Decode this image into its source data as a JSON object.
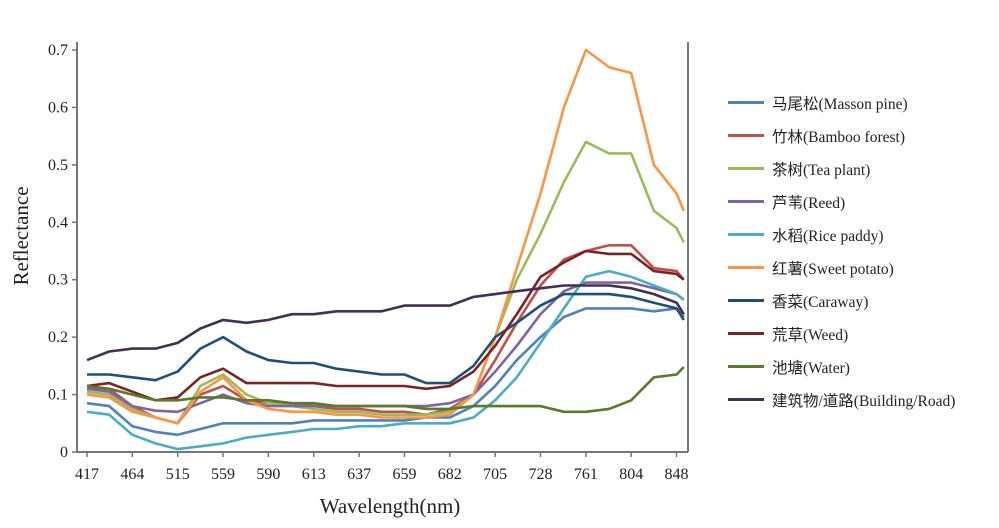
{
  "chart_data": {
    "type": "line",
    "xlabel": "Wavelength(nm)",
    "ylabel": "Reflectance",
    "ylim": [
      0,
      0.7
    ],
    "yticks": [
      "0",
      "0.1",
      "0.2",
      "0.3",
      "0.4",
      "0.5",
      "0.6",
      "0.7"
    ],
    "xtick_labels": [
      "417",
      "464",
      "515",
      "559",
      "590",
      "613",
      "637",
      "659",
      "682",
      "705",
      "728",
      "761",
      "804",
      "848"
    ],
    "grid": false,
    "legend_placement": "right",
    "x": [
      417,
      440,
      464,
      490,
      515,
      537,
      559,
      575,
      590,
      602,
      613,
      625,
      637,
      648,
      659,
      670,
      682,
      694,
      705,
      716,
      728,
      745,
      761,
      783,
      804,
      826,
      848,
      855
    ],
    "series": [
      {
        "name": "马尾松(Masson pine)",
        "color": "#4f81bd",
        "values": [
          0.085,
          0.08,
          0.045,
          0.035,
          0.03,
          0.04,
          0.05,
          0.05,
          0.05,
          0.05,
          0.055,
          0.055,
          0.055,
          0.055,
          0.055,
          0.06,
          0.06,
          0.08,
          0.115,
          0.16,
          0.2,
          0.235,
          0.25,
          0.25,
          0.25,
          0.245,
          0.25,
          0.235
        ]
      },
      {
        "name": "竹林(Bamboo forest)",
        "color": "#c0504d",
        "values": [
          0.11,
          0.11,
          0.08,
          0.06,
          0.05,
          0.1,
          0.115,
          0.09,
          0.085,
          0.085,
          0.08,
          0.075,
          0.075,
          0.07,
          0.07,
          0.065,
          0.075,
          0.1,
          0.16,
          0.225,
          0.29,
          0.335,
          0.35,
          0.36,
          0.36,
          0.32,
          0.315,
          0.3
        ]
      },
      {
        "name": "茶树(Tea plant)",
        "color": "#9bbb59",
        "values": [
          0.105,
          0.1,
          0.075,
          0.06,
          0.05,
          0.115,
          0.135,
          0.1,
          0.085,
          0.08,
          0.075,
          0.07,
          0.07,
          0.065,
          0.065,
          0.065,
          0.07,
          0.1,
          0.2,
          0.3,
          0.38,
          0.47,
          0.54,
          0.52,
          0.52,
          0.42,
          0.39,
          0.365
        ]
      },
      {
        "name": "芦苇(Reed)",
        "color": "#8064a2",
        "values": [
          0.11,
          0.105,
          0.08,
          0.072,
          0.07,
          0.085,
          0.1,
          0.085,
          0.08,
          0.08,
          0.08,
          0.08,
          0.08,
          0.08,
          0.08,
          0.08,
          0.085,
          0.1,
          0.14,
          0.185,
          0.24,
          0.28,
          0.295,
          0.295,
          0.295,
          0.285,
          0.275,
          0.265
        ]
      },
      {
        "name": "水稻(Rice paddy)",
        "color": "#4bacc6",
        "values": [
          0.07,
          0.065,
          0.03,
          0.015,
          0.005,
          0.01,
          0.015,
          0.025,
          0.03,
          0.035,
          0.04,
          0.04,
          0.045,
          0.045,
          0.05,
          0.05,
          0.05,
          0.06,
          0.09,
          0.13,
          0.19,
          0.25,
          0.305,
          0.315,
          0.305,
          0.29,
          0.275,
          0.265
        ]
      },
      {
        "name": "红薯(Sweet potato)",
        "color": "#f79646",
        "values": [
          0.1,
          0.095,
          0.07,
          0.06,
          0.05,
          0.105,
          0.13,
          0.09,
          0.075,
          0.07,
          0.07,
          0.065,
          0.065,
          0.06,
          0.06,
          0.06,
          0.065,
          0.1,
          0.2,
          0.32,
          0.45,
          0.6,
          0.7,
          0.67,
          0.66,
          0.5,
          0.45,
          0.42
        ]
      },
      {
        "name": "香菜(Caraway)",
        "color": "#1f4e79",
        "values": [
          0.135,
          0.135,
          0.13,
          0.125,
          0.14,
          0.18,
          0.2,
          0.175,
          0.16,
          0.155,
          0.155,
          0.145,
          0.14,
          0.135,
          0.135,
          0.12,
          0.12,
          0.15,
          0.2,
          0.225,
          0.255,
          0.275,
          0.275,
          0.275,
          0.27,
          0.26,
          0.25,
          0.23
        ]
      },
      {
        "name": "荒草(Weed)",
        "color": "#7b2323",
        "values": [
          0.115,
          0.12,
          0.105,
          0.09,
          0.095,
          0.13,
          0.145,
          0.12,
          0.12,
          0.12,
          0.12,
          0.115,
          0.115,
          0.115,
          0.115,
          0.11,
          0.115,
          0.14,
          0.185,
          0.24,
          0.305,
          0.33,
          0.35,
          0.345,
          0.345,
          0.315,
          0.31,
          0.3
        ]
      },
      {
        "name": "池塘(Water)",
        "color": "#5a7a2a",
        "values": [
          0.115,
          0.11,
          0.1,
          0.09,
          0.09,
          0.095,
          0.095,
          0.09,
          0.09,
          0.085,
          0.085,
          0.08,
          0.08,
          0.08,
          0.08,
          0.075,
          0.075,
          0.08,
          0.08,
          0.08,
          0.08,
          0.07,
          0.07,
          0.075,
          0.09,
          0.13,
          0.135,
          0.148
        ]
      },
      {
        "name": "建筑物/道路(Building/Road)",
        "color": "#403152",
        "values": [
          0.16,
          0.175,
          0.18,
          0.18,
          0.19,
          0.215,
          0.23,
          0.225,
          0.23,
          0.24,
          0.24,
          0.245,
          0.245,
          0.245,
          0.255,
          0.255,
          0.255,
          0.27,
          0.275,
          0.28,
          0.285,
          0.29,
          0.29,
          0.29,
          0.285,
          0.275,
          0.26,
          0.24
        ]
      }
    ]
  }
}
